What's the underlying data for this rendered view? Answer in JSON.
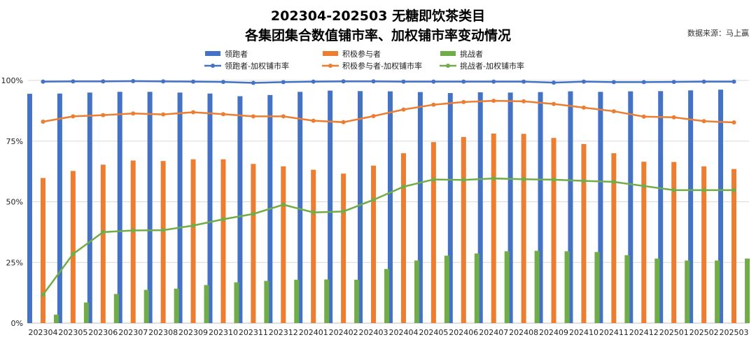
{
  "chart_data": {
    "type": "bar",
    "title": "202304-202503 无糖即饮茶类目",
    "subtitle": "各集团集合数值铺市率、加权铺市率变动情况",
    "source": "数据来源：马上赢",
    "xlabel": "",
    "ylabel": "",
    "ylim": [
      0,
      100
    ],
    "yticks": [
      "0%",
      "25%",
      "50%",
      "75%",
      "100%"
    ],
    "grid": true,
    "legend_placement": "top-center",
    "categories": [
      "202304",
      "202305",
      "202306",
      "202307",
      "202308",
      "202309",
      "202310",
      "202311",
      "202312",
      "202401",
      "202402",
      "202403",
      "202404",
      "202405",
      "202406",
      "202407",
      "202408",
      "202409",
      "202410",
      "202411",
      "202412",
      "202501",
      "202502",
      "202503"
    ],
    "series": [
      {
        "name": "领跑者",
        "kind": "bar",
        "color": "#4472C4",
        "values": [
          94.5,
          94.6,
          95,
          95.3,
          95.3,
          95,
          94.6,
          93.5,
          94,
          95.3,
          95.8,
          95.6,
          95.5,
          95.2,
          94.8,
          95.1,
          95,
          95.2,
          95.5,
          95.3,
          95.5,
          95.6,
          95.9,
          96.2
        ]
      },
      {
        "name": "积极参与者",
        "kind": "bar",
        "color": "#ED7D31",
        "values": [
          59.8,
          62.7,
          65.3,
          67,
          66.8,
          67.5,
          67.5,
          65.6,
          64.6,
          63.2,
          61.6,
          64.9,
          70,
          74.6,
          76.7,
          78.1,
          78,
          76.3,
          73.8,
          70,
          66.5,
          66.4,
          64.6,
          63.5
        ]
      },
      {
        "name": "挑战者",
        "kind": "bar",
        "color": "#70AD47",
        "values": [
          3.5,
          8.5,
          12,
          13.7,
          14.2,
          15.7,
          16.8,
          17.4,
          17.9,
          18,
          17.9,
          22.3,
          25.8,
          27.8,
          28.7,
          29.6,
          29.8,
          29.6,
          29.3,
          28,
          26.6,
          25.8,
          25.8,
          26.6
        ]
      },
      {
        "name": "领跑者-加权铺市率",
        "kind": "line",
        "color": "#4472C4",
        "values": [
          99.5,
          99.6,
          99.6,
          99.7,
          99.6,
          99.5,
          99.4,
          99,
          99.3,
          99.5,
          99.6,
          99.6,
          99.5,
          99.5,
          99.5,
          99.5,
          99.5,
          99.1,
          99.5,
          99.3,
          99.3,
          99.4,
          99.5,
          99.5
        ]
      },
      {
        "name": "积极参与者-加权铺市率",
        "kind": "line",
        "color": "#ED7D31",
        "values": [
          83,
          85.2,
          85.7,
          86.4,
          86,
          86.9,
          86.1,
          85.2,
          85.2,
          83.4,
          82.8,
          85.3,
          88,
          90,
          91.1,
          91.6,
          91.4,
          90.3,
          88.8,
          87.3,
          85.1,
          84.8,
          83.2,
          82.7
        ]
      },
      {
        "name": "挑战者-加权铺市率",
        "kind": "line",
        "color": "#70AD47",
        "values": [
          11.7,
          28.5,
          37.5,
          38.2,
          38.3,
          40.2,
          42.8,
          45,
          48.8,
          45.6,
          46,
          50.8,
          56.2,
          59.2,
          59,
          59.6,
          59.3,
          59.1,
          58.6,
          58.2,
          56.5,
          54.8,
          54.8,
          54.8
        ]
      }
    ]
  }
}
